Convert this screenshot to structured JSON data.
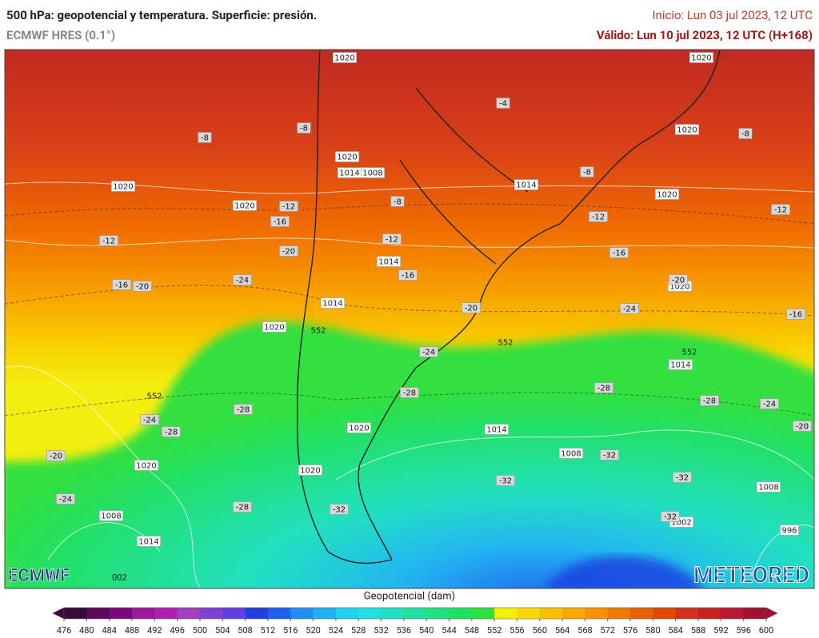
{
  "header": {
    "title": "500 hPa: geopotencial y temperatura. Superficie: presión.",
    "subtitle": "ECMWF HRES (0.1°)",
    "init": "Inicio: Lun 03 jul 2023, 12 UTC",
    "valid": "Válido: Lun 10 jul 2023, 12 UTC (H+168)"
  },
  "map_labels": {
    "pressure": [
      1020,
      1020,
      1020,
      1020,
      1014,
      1008,
      1014,
      1020,
      1020,
      1020,
      1014,
      1020,
      1014,
      1020,
      1014,
      1020,
      1014,
      1008,
      1020,
      1020,
      1008,
      1008,
      1002,
      1014,
      996
    ],
    "temperature": [
      -8,
      -8,
      -4,
      -8,
      -8,
      -8,
      -12,
      -16,
      -12,
      -12,
      -12,
      -12,
      -20,
      -16,
      -16,
      -16,
      -20,
      -24,
      -20,
      -20,
      -24,
      -16,
      -24,
      -28,
      -28,
      -28,
      -24,
      -20,
      -24,
      -28,
      -28,
      -20,
      -32,
      -32,
      -32,
      -24,
      -28,
      -32,
      -32
    ],
    "contour": [
      552,
      552,
      552,
      552
    ]
  },
  "logos": {
    "left": "ECMWF",
    "run": "002",
    "right": "METEORED"
  },
  "colorbar": {
    "title": "Geopotencial (dam)",
    "ticks": [
      476,
      480,
      484,
      488,
      492,
      496,
      500,
      504,
      508,
      512,
      516,
      520,
      524,
      528,
      532,
      536,
      540,
      544,
      548,
      552,
      556,
      560,
      564,
      568,
      572,
      576,
      580,
      584,
      588,
      592,
      596,
      600
    ],
    "colors": [
      "#3a0a3a",
      "#5c0a5c",
      "#7a0a7a",
      "#9a1a9a",
      "#b020b0",
      "#a040c0",
      "#8040d0",
      "#6040e0",
      "#2040e0",
      "#2060f0",
      "#2090f0",
      "#20b0f0",
      "#20d0f0",
      "#20e0e0",
      "#20e0c0",
      "#20e0a0",
      "#20e080",
      "#20e060",
      "#30e040",
      "#f0f000",
      "#f8d800",
      "#f8c000",
      "#f8a800",
      "#f89000",
      "#f07800",
      "#e86000",
      "#e04800",
      "#d83020",
      "#c82020",
      "#b81830",
      "#a01030"
    ]
  }
}
